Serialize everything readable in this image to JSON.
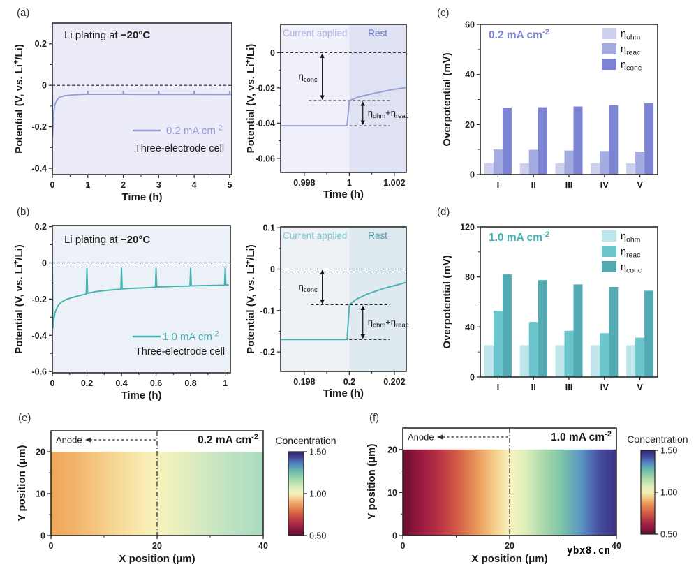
{
  "watermark": "ybx8.cn",
  "panel_labels": {
    "a": "(a)",
    "b": "(b)",
    "c": "(c)",
    "d": "(d)",
    "e": "(e)",
    "f": "(f)"
  },
  "chart_data": [
    {
      "id": "a-main",
      "type": "line",
      "title_normal": "Li plating at ",
      "title_bold": "−20°C",
      "xlabel": "Time (h)",
      "ylabel": "Potential (V, vs. Li^{+}/Li)",
      "xlim": [
        0,
        5.06
      ],
      "ylim": [
        -0.43,
        0.3
      ],
      "xticks": [
        [
          0,
          "0"
        ],
        [
          1,
          "1"
        ],
        [
          2,
          "2"
        ],
        [
          3,
          "3"
        ],
        [
          4,
          "4"
        ],
        [
          5,
          "5"
        ]
      ],
      "minor_xticks": [
        0.5,
        1.5,
        2.5,
        3.5,
        4.5
      ],
      "yticks": [
        [
          0.2,
          "0.2"
        ],
        [
          0,
          "0"
        ],
        [
          -0.2,
          "-0.2"
        ],
        [
          -0.4,
          "-0.4"
        ]
      ],
      "minor_yticks": [
        0.1,
        -0.1,
        -0.3
      ],
      "zero_dash": true,
      "bg": "#ebecf7",
      "line_color": "#959CDA",
      "legend_label": "0.2 mA cm^{-2}",
      "note": "Three-electrode cell",
      "points": [
        [
          0,
          0
        ],
        [
          0.008,
          -0.245
        ],
        [
          0.02,
          -0.19
        ],
        [
          0.04,
          -0.13
        ],
        [
          0.07,
          -0.095
        ],
        [
          0.12,
          -0.072
        ],
        [
          0.2,
          -0.058
        ],
        [
          0.35,
          -0.05
        ],
        [
          0.6,
          -0.046
        ],
        [
          0.99,
          -0.0435
        ],
        [
          1,
          -0.029
        ],
        [
          1.01,
          -0.0435
        ],
        [
          1.5,
          -0.0435
        ],
        [
          1.99,
          -0.0435
        ],
        [
          2,
          -0.029
        ],
        [
          2.01,
          -0.0435
        ],
        [
          2.5,
          -0.044
        ],
        [
          2.99,
          -0.044
        ],
        [
          3,
          -0.029
        ],
        [
          3.01,
          -0.044
        ],
        [
          3.5,
          -0.044
        ],
        [
          3.99,
          -0.044
        ],
        [
          4,
          -0.0295
        ],
        [
          4.01,
          -0.044
        ],
        [
          4.5,
          -0.0445
        ],
        [
          4.99,
          -0.0445
        ],
        [
          5,
          -0.03
        ],
        [
          5.01,
          -0.0445
        ],
        [
          5.05,
          -0.0445
        ]
      ]
    },
    {
      "id": "a-inset",
      "type": "inset",
      "xlabel": "Time (h)",
      "ylabel": "Potential (V, vs. Li^{+}/Li)",
      "xlim": [
        0.99695,
        1.00253
      ],
      "xticks": [
        [
          0.998,
          "0.998"
        ],
        [
          1,
          "1"
        ],
        [
          1.002,
          "1.002"
        ]
      ],
      "minor_xticks": [
        0.999,
        1.001
      ],
      "ylim": [
        -0.068,
        0.016
      ],
      "yticks": [
        [
          0,
          "0"
        ],
        [
          -0.02,
          "-0.02"
        ],
        [
          -0.04,
          "-0.04"
        ],
        [
          -0.06,
          "-0.06"
        ]
      ],
      "minor_yticks": [
        -0.01,
        -0.03,
        -0.05
      ],
      "split_x": 1,
      "regions": [
        {
          "label": "Current applied",
          "bg": "#eff0f9",
          "label_color": "#a9afe0"
        },
        {
          "label": "Rest",
          "bg": "#dfe2f2",
          "label_color": "#6b74c9"
        }
      ],
      "line_color": "#959CDA",
      "hlines": [
        {
          "y": 0,
          "x1": 0.99695,
          "x2": 1.00253
        },
        {
          "y": -0.0272,
          "x1": 0.9982,
          "x2": 1.0018
        },
        {
          "y": -0.0415,
          "x1": 1.0,
          "x2": 1.0018
        }
      ],
      "annotations": [
        {
          "label": "η_{conc}",
          "side": "left",
          "x": 0.9988,
          "y1": 0,
          "y2": -0.0272
        },
        {
          "label": "η_{ohm}+η_{reac}",
          "side": "right",
          "x": 1.0006,
          "y1": -0.0272,
          "y2": -0.0415
        }
      ],
      "points": [
        [
          0.99695,
          -0.0415
        ],
        [
          0.9999,
          -0.0415
        ],
        [
          1,
          -0.0272
        ],
        [
          1.0004,
          -0.0252
        ],
        [
          1.0012,
          -0.0228
        ],
        [
          1.002,
          -0.0208
        ],
        [
          1.00253,
          -0.0198
        ]
      ]
    },
    {
      "id": "c-bars",
      "type": "bar",
      "title": "0.2 mA cm^{-2}",
      "title_color": "#7b83d2",
      "ylabel": "Overpotential (mV)",
      "ylim": [
        0,
        60
      ],
      "yticks": [
        [
          0,
          "0"
        ],
        [
          20,
          "20"
        ],
        [
          40,
          "40"
        ],
        [
          60,
          "60"
        ]
      ],
      "minor_yticks": [
        10,
        30,
        50
      ],
      "categories": [
        "I",
        "II",
        "III",
        "IV",
        "V"
      ],
      "series": [
        {
          "name": "η_{ohm}",
          "color": "#cdd1ee",
          "values": [
            4.5,
            4.5,
            4.5,
            4.5,
            4.5
          ]
        },
        {
          "name": "η_{reac}",
          "color": "#a4abe0",
          "values": [
            10,
            9.9,
            9.6,
            9.4,
            9.2
          ]
        },
        {
          "name": "η_{conc}",
          "color": "#7b83d2",
          "values": [
            26.7,
            26.9,
            27.2,
            27.7,
            28.6
          ]
        }
      ]
    },
    {
      "id": "b-main",
      "type": "line",
      "title_normal": "Li plating at ",
      "title_bold": "−20°C",
      "xlabel": "Time (h)",
      "ylabel": "Potential (V, vs. Li^{+}/Li)",
      "xlim": [
        0,
        1.03
      ],
      "ylim": [
        -0.607,
        0.206
      ],
      "xticks": [
        [
          0,
          "0"
        ],
        [
          0.2,
          "0.2"
        ],
        [
          0.4,
          "0.4"
        ],
        [
          0.6,
          "0.6"
        ],
        [
          0.8,
          "0.8"
        ],
        [
          1,
          "1"
        ]
      ],
      "minor_xticks": [
        0.1,
        0.3,
        0.5,
        0.7,
        0.9
      ],
      "yticks": [
        [
          0.2,
          "0.2"
        ],
        [
          0,
          "0"
        ],
        [
          -0.2,
          "-0.2"
        ],
        [
          -0.4,
          "-0.4"
        ],
        [
          -0.6,
          "-0.6"
        ]
      ],
      "minor_yticks": [
        0.1,
        -0.1,
        -0.3,
        -0.5
      ],
      "zero_dash": true,
      "bg": "#ecf1f7",
      "line_color": "#45B2B0",
      "legend_label": "1.0 mA cm^{-2}",
      "note": "Three-electrode cell",
      "points": [
        [
          0,
          0
        ],
        [
          0.003,
          -0.36
        ],
        [
          0.008,
          -0.315
        ],
        [
          0.015,
          -0.275
        ],
        [
          0.03,
          -0.24
        ],
        [
          0.05,
          -0.218
        ],
        [
          0.08,
          -0.202
        ],
        [
          0.12,
          -0.19
        ],
        [
          0.16,
          -0.18
        ],
        [
          0.196,
          -0.172
        ],
        [
          0.2,
          -0.032
        ],
        [
          0.204,
          -0.168
        ],
        [
          0.25,
          -0.159
        ],
        [
          0.3,
          -0.153
        ],
        [
          0.35,
          -0.149
        ],
        [
          0.396,
          -0.146
        ],
        [
          0.4,
          -0.03
        ],
        [
          0.404,
          -0.144
        ],
        [
          0.45,
          -0.141
        ],
        [
          0.5,
          -0.139
        ],
        [
          0.55,
          -0.137
        ],
        [
          0.596,
          -0.135
        ],
        [
          0.6,
          -0.03
        ],
        [
          0.604,
          -0.133
        ],
        [
          0.65,
          -0.132
        ],
        [
          0.7,
          -0.13
        ],
        [
          0.75,
          -0.129
        ],
        [
          0.796,
          -0.128
        ],
        [
          0.8,
          -0.03
        ],
        [
          0.804,
          -0.127
        ],
        [
          0.85,
          -0.126
        ],
        [
          0.9,
          -0.125
        ],
        [
          0.95,
          -0.124
        ],
        [
          0.996,
          -0.123
        ],
        [
          1,
          -0.028
        ],
        [
          1.004,
          -0.122
        ],
        [
          1.02,
          -0.122
        ]
      ]
    },
    {
      "id": "b-inset",
      "type": "inset",
      "xlabel": "Time (h)",
      "ylabel": "Potential (V, vs. Li^{+}/Li)",
      "xlim": [
        0.19695,
        0.20253
      ],
      "xticks": [
        [
          0.198,
          "0.198"
        ],
        [
          0.2,
          "0.2"
        ],
        [
          0.202,
          "0.202"
        ]
      ],
      "minor_xticks": [
        0.199,
        0.201
      ],
      "ylim": [
        -0.247,
        0.102
      ],
      "yticks": [
        [
          0.1,
          "0.1"
        ],
        [
          0,
          "0"
        ],
        [
          -0.1,
          "-0.1"
        ],
        [
          -0.2,
          "-0.2"
        ]
      ],
      "minor_yticks": [
        0.05,
        -0.05,
        -0.15
      ],
      "split_x": 0.2,
      "regions": [
        {
          "label": "Current applied",
          "bg": "#eef2f7",
          "label_color": "#79c9ce"
        },
        {
          "label": "Rest",
          "bg": "#dfe9f0",
          "label_color": "#4a9da6"
        }
      ],
      "line_color": "#45B2B0",
      "hlines": [
        {
          "y": 0,
          "x1": 0.19695,
          "x2": 0.20253
        },
        {
          "y": -0.086,
          "x1": 0.1983,
          "x2": 0.2018
        },
        {
          "y": -0.17,
          "x1": 0.2,
          "x2": 0.2018
        }
      ],
      "annotations": [
        {
          "label": "η_{conc}",
          "side": "left",
          "x": 0.1988,
          "y1": 0,
          "y2": -0.086
        },
        {
          "label": "η_{ohm}+η_{reac}",
          "side": "right",
          "x": 0.2006,
          "y1": -0.086,
          "y2": -0.17
        }
      ],
      "points": [
        [
          0.19695,
          -0.17
        ],
        [
          0.1999,
          -0.17
        ],
        [
          0.2,
          -0.086
        ],
        [
          0.2003,
          -0.073
        ],
        [
          0.2008,
          -0.06
        ],
        [
          0.2015,
          -0.047
        ],
        [
          0.2022,
          -0.037
        ],
        [
          0.20253,
          -0.032
        ]
      ]
    },
    {
      "id": "d-bars",
      "type": "bar",
      "title": "1.0 mA cm^{-2}",
      "title_color": "#41afb3",
      "ylabel": "Overpotential (mV)",
      "ylim": [
        0,
        120
      ],
      "yticks": [
        [
          0,
          "0"
        ],
        [
          40,
          "40"
        ],
        [
          80,
          "80"
        ],
        [
          120,
          "120"
        ]
      ],
      "minor_yticks": [
        20,
        60,
        100
      ],
      "categories": [
        "I",
        "II",
        "III",
        "IV",
        "V"
      ],
      "series": [
        {
          "name": "η_{ohm}",
          "color": "#bfe7eb",
          "values": [
            25.5,
            25.5,
            25.5,
            25.5,
            25.5
          ]
        },
        {
          "name": "η_{reac}",
          "color": "#6ac5cd",
          "values": [
            53,
            44,
            37,
            35,
            31.5
          ]
        },
        {
          "name": "η_{conc}",
          "color": "#54aab3",
          "values": [
            82,
            77.5,
            74,
            72,
            69
          ]
        }
      ]
    },
    {
      "id": "e-heat",
      "type": "heatmap",
      "title": "0.2 mA cm^{-2}",
      "anode_label": "Anode",
      "xlabel": "X position (μm)",
      "ylabel": "Y position (μm)",
      "xlim": [
        0,
        40
      ],
      "ylim": [
        0,
        25
      ],
      "xticks": [
        [
          0,
          "0"
        ],
        [
          20,
          "20"
        ],
        [
          40,
          "40"
        ]
      ],
      "minor_xticks": [
        10,
        30
      ],
      "yticks": [
        [
          0,
          "0"
        ],
        [
          10,
          "10"
        ],
        [
          20,
          "20"
        ]
      ],
      "minor_yticks": [
        5,
        15
      ],
      "map_y_extent": [
        0,
        20
      ],
      "divider_x": 20,
      "gradient": [
        [
          "0%",
          "#efa658"
        ],
        [
          "12%",
          "#f2b56c"
        ],
        [
          "30%",
          "#f6d693"
        ],
        [
          "44%",
          "#f8ecb2"
        ],
        [
          "50%",
          "#f7f2bc"
        ],
        [
          "58%",
          "#ecf0bc"
        ],
        [
          "72%",
          "#d3e9c2"
        ],
        [
          "86%",
          "#bce1c2"
        ],
        [
          "100%",
          "#abdbc1"
        ]
      ],
      "colorbar": {
        "title": "Concentration",
        "lim": [
          0.5,
          1.5
        ],
        "ticks": [
          [
            1.5,
            "1.50"
          ],
          [
            1,
            "1.00"
          ],
          [
            0.5,
            "0.50"
          ]
        ],
        "gradient": [
          [
            "0%",
            "#5f0e2e"
          ],
          [
            "8%",
            "#8e1940"
          ],
          [
            "16%",
            "#b52f46"
          ],
          [
            "26%",
            "#d65f45"
          ],
          [
            "36%",
            "#eb9559"
          ],
          [
            "44%",
            "#f4cc8a"
          ],
          [
            "50%",
            "#f6f0bc"
          ],
          [
            "57%",
            "#ddeebb"
          ],
          [
            "67%",
            "#a5d7ac"
          ],
          [
            "76%",
            "#6fbfaa"
          ],
          [
            "85%",
            "#5387c3"
          ],
          [
            "93%",
            "#44479b"
          ],
          [
            "100%",
            "#2d2968"
          ]
        ]
      }
    },
    {
      "id": "f-heat",
      "type": "heatmap",
      "title": "1.0 mA cm^{-2}",
      "anode_label": "Anode",
      "xlabel": "X position (μm)",
      "ylabel": "Y position (μm)",
      "xlim": [
        0,
        40
      ],
      "ylim": [
        0,
        25
      ],
      "xticks": [
        [
          0,
          "0"
        ],
        [
          20,
          "20"
        ],
        [
          40,
          "40"
        ]
      ],
      "minor_xticks": [
        10,
        30
      ],
      "yticks": [
        [
          0,
          "0"
        ],
        [
          10,
          "10"
        ],
        [
          20,
          "20"
        ]
      ],
      "minor_yticks": [
        5,
        15
      ],
      "map_y_extent": [
        0,
        20
      ],
      "divider_x": 20,
      "gradient": [
        [
          "0%",
          "#6b0c30"
        ],
        [
          "8%",
          "#97193f"
        ],
        [
          "17%",
          "#b93145"
        ],
        [
          "26%",
          "#d55f47"
        ],
        [
          "35%",
          "#eb9a5c"
        ],
        [
          "44%",
          "#f5d492"
        ],
        [
          "50%",
          "#f8f3bf"
        ],
        [
          "57%",
          "#dfeebb"
        ],
        [
          "66%",
          "#abd9ab"
        ],
        [
          "75%",
          "#79c2a9"
        ],
        [
          "84%",
          "#5a91c5"
        ],
        [
          "92%",
          "#474d9f"
        ],
        [
          "100%",
          "#3b3183"
        ]
      ],
      "colorbar": {
        "title": "Concentration",
        "lim": [
          0.5,
          1.5
        ],
        "ticks": [
          [
            1.5,
            "1.50"
          ],
          [
            1,
            "1.00"
          ],
          [
            0.5,
            "0.50"
          ]
        ],
        "gradient": [
          [
            "0%",
            "#5f0e2e"
          ],
          [
            "8%",
            "#8e1940"
          ],
          [
            "16%",
            "#b52f46"
          ],
          [
            "26%",
            "#d65f45"
          ],
          [
            "36%",
            "#eb9559"
          ],
          [
            "44%",
            "#f4cc8a"
          ],
          [
            "50%",
            "#f6f0bc"
          ],
          [
            "57%",
            "#ddeebb"
          ],
          [
            "67%",
            "#a5d7ac"
          ],
          [
            "76%",
            "#6fbfaa"
          ],
          [
            "85%",
            "#5387c3"
          ],
          [
            "93%",
            "#44479b"
          ],
          [
            "100%",
            "#2d2968"
          ]
        ]
      }
    }
  ]
}
